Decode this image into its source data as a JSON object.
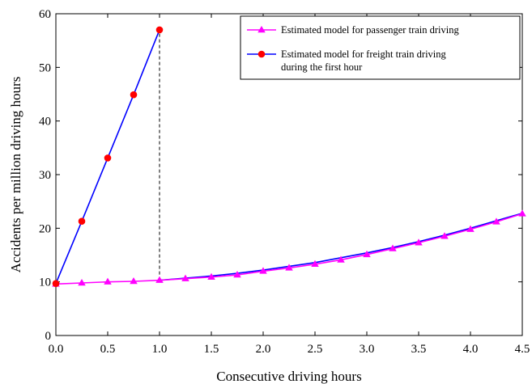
{
  "chart_data": {
    "type": "line",
    "title": "",
    "xlabel": "Consecutive driving hours",
    "ylabel": "Accidents per million driving hours",
    "xlim": [
      0,
      4.5
    ],
    "ylim": [
      0,
      60
    ],
    "xticks": [
      "0.0",
      "0.5",
      "1.0",
      "1.5",
      "2.0",
      "2.5",
      "3.0",
      "3.5",
      "4.0",
      "4.5"
    ],
    "yticks": [
      "0",
      "10",
      "20",
      "30",
      "40",
      "50",
      "60"
    ],
    "grid": false,
    "legend_position": "top-right",
    "reference_line": {
      "style": "dashed",
      "x": 1.0,
      "y_from": 10.3,
      "y_to": 57
    },
    "series": [
      {
        "name": "Estimated model for passenger train driving",
        "color": "#ff00ff",
        "marker": "triangle",
        "marker_color": "#ff00ff",
        "x": [
          0,
          0.25,
          0.5,
          0.75,
          1.0,
          1.25,
          1.5,
          1.75,
          2.0,
          2.25,
          2.5,
          2.75,
          3.0,
          3.25,
          3.5,
          3.75,
          4.0,
          4.25,
          4.5
        ],
        "y": [
          9.6,
          9.8,
          10.0,
          10.1,
          10.3,
          10.6,
          10.9,
          11.3,
          12.0,
          12.6,
          13.3,
          14.1,
          15.1,
          16.2,
          17.3,
          18.5,
          19.8,
          21.2,
          22.7
        ]
      },
      {
        "name": "Estimated model for freight train driving during the first hour",
        "color": "#0000ff",
        "marker": "circle",
        "marker_color": "#ff0000",
        "x": [
          0,
          0.25,
          0.5,
          0.75,
          1.0
        ],
        "y": [
          9.7,
          21.3,
          33.1,
          44.9,
          57.0
        ],
        "continuation": {
          "x": [
            1.0,
            1.25,
            1.5,
            1.75,
            2.0,
            2.25,
            2.5,
            2.75,
            3.0,
            3.25,
            3.5,
            3.75,
            4.0,
            4.25,
            4.5
          ],
          "y": [
            10.3,
            10.7,
            11.1,
            11.6,
            12.2,
            12.9,
            13.6,
            14.5,
            15.4,
            16.4,
            17.5,
            18.7,
            20.0,
            21.4,
            22.8
          ]
        }
      }
    ]
  }
}
